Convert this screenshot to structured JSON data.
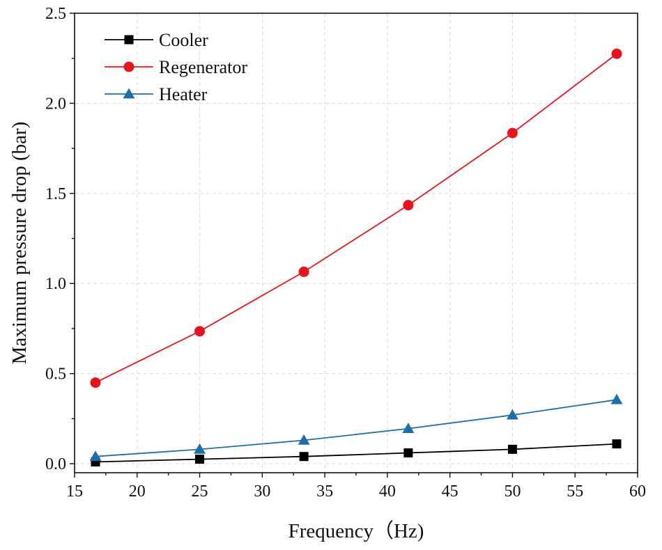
{
  "chart_data": {
    "type": "line",
    "title": "",
    "xlabel": "Frequency（Hz)",
    "ylabel": "Maximum pressure drop (bar)",
    "xlim": [
      15,
      60
    ],
    "ylim": [
      -0.05,
      2.5
    ],
    "xticks": [
      15,
      20,
      25,
      30,
      35,
      40,
      45,
      50,
      55,
      60
    ],
    "yticks": [
      0.0,
      0.5,
      1.0,
      1.5,
      2.0,
      2.5
    ],
    "xtick_labels": [
      "15",
      "20",
      "25",
      "30",
      "35",
      "40",
      "45",
      "50",
      "55",
      "60"
    ],
    "ytick_labels": [
      "0.0",
      "0.5",
      "1.0",
      "1.5",
      "2.0",
      "2.5"
    ],
    "grid": true,
    "legend_position": "top-left",
    "x": [
      16.67,
      25,
      33.33,
      41.67,
      50,
      58.33
    ],
    "series": [
      {
        "name": "Cooler",
        "marker": "square",
        "color": "#000000",
        "values": [
          0.01,
          0.025,
          0.04,
          0.06,
          0.08,
          0.11
        ]
      },
      {
        "name": "Regenerator",
        "marker": "circle",
        "color": "#e8141c",
        "values": [
          0.45,
          0.735,
          1.065,
          1.435,
          1.835,
          2.275
        ]
      },
      {
        "name": "Heater",
        "marker": "triangle",
        "color": "#1f6ea8",
        "values": [
          0.04,
          0.08,
          0.13,
          0.195,
          0.27,
          0.355
        ]
      }
    ]
  }
}
